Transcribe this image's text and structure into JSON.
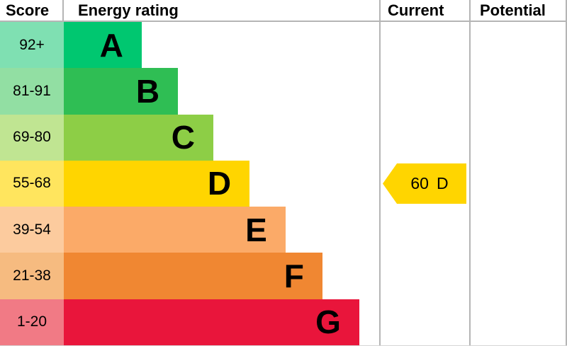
{
  "header": {
    "score": "Score",
    "energy_rating": "Energy rating",
    "current": "Current",
    "potential": "Potential"
  },
  "chart_data": {
    "type": "bar",
    "title": "Energy rating",
    "bands": [
      {
        "score_range": "92+",
        "letter": "A",
        "bar_color": "#00c770",
        "score_bg": "#7fe0b2",
        "bar_width_pct": 24.7
      },
      {
        "score_range": "81-91",
        "letter": "B",
        "bar_color": "#2fbe54",
        "score_bg": "#92dfa3",
        "bar_width_pct": 36.2
      },
      {
        "score_range": "69-80",
        "letter": "C",
        "bar_color": "#8dce46",
        "score_bg": "#c0e592",
        "bar_width_pct": 47.4
      },
      {
        "score_range": "55-68",
        "letter": "D",
        "bar_color": "#ffd500",
        "score_bg": "#ffe55e",
        "bar_width_pct": 58.9
      },
      {
        "score_range": "39-54",
        "letter": "E",
        "bar_color": "#fbaa68",
        "score_bg": "#fccb9e",
        "bar_width_pct": 70.3
      },
      {
        "score_range": "21-38",
        "letter": "F",
        "bar_color": "#f08732",
        "score_bg": "#f6bb80",
        "bar_width_pct": 82.0
      },
      {
        "score_range": "1-20",
        "letter": "G",
        "bar_color": "#e9153b",
        "score_bg": "#f17a85",
        "bar_width_pct": 93.7
      }
    ],
    "current": {
      "score": "60",
      "letter": "D",
      "color": "#ffd500",
      "band": "55-68"
    }
  }
}
